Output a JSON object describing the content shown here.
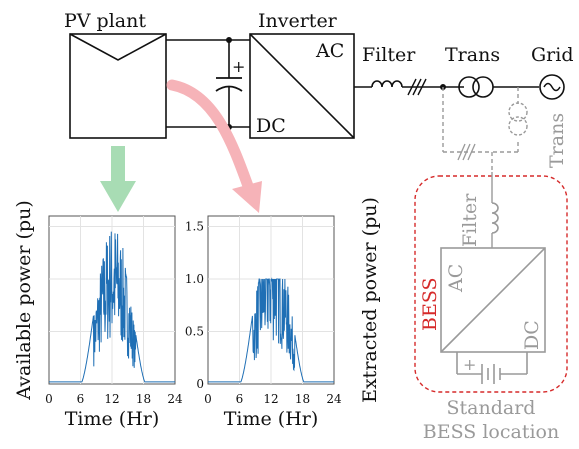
{
  "labels": {
    "pv_plant": "PV plant",
    "inverter": "Inverter",
    "ac": "AC",
    "dc": "DC",
    "filter": "Filter",
    "trans": "Trans",
    "grid": "Grid",
    "trans_vertical": "Trans",
    "bess_filter": "Filter",
    "bess": "BESS",
    "bess_ac": "AC",
    "bess_dc": "DC",
    "standard_line1": "Standard",
    "standard_line2": "BESS location",
    "plus": "+"
  },
  "chart_data": [
    {
      "type": "line",
      "title": "",
      "xlabel": "Time (Hr)",
      "ylabel": "Available power (pu)",
      "xlim": [
        0,
        24
      ],
      "ylim": [
        0,
        1.6
      ],
      "xticks": [
        0,
        6,
        12,
        18,
        24
      ],
      "yticks": [
        0,
        0.5,
        1.0,
        1.5
      ],
      "grid": true,
      "series_color": "#1f6fb5",
      "profile": {
        "sunrise": 6.0,
        "sunset": 18.5,
        "peak_time": 12.5,
        "peak_value": 1.55,
        "night_value": 0.02,
        "clip": null
      }
    },
    {
      "type": "line",
      "title": "",
      "xlabel": "Time (Hr)",
      "ylabel": "Extracted power (pu)",
      "xlim": [
        0,
        24
      ],
      "ylim": [
        0,
        1.6
      ],
      "xticks": [
        0,
        6,
        12,
        18,
        24
      ],
      "yticks": [
        0,
        0.5,
        1.0,
        1.5
      ],
      "ytick_labels": [
        "0",
        "0.5",
        "1.0",
        "1.5"
      ],
      "grid": true,
      "series_color": "#1f6fb5",
      "profile": {
        "sunrise": 6.0,
        "sunset": 18.5,
        "peak_time": 12.5,
        "peak_value": 1.55,
        "night_value": 0.02,
        "clip": 1.0
      }
    }
  ],
  "colors": {
    "line": "#111111",
    "gray": "#9a9a9a",
    "red": "#d62a2a",
    "green_arrow": "#a8dcb4",
    "pink_arrow": "#f6b3b8",
    "series": "#1f6fb5"
  }
}
